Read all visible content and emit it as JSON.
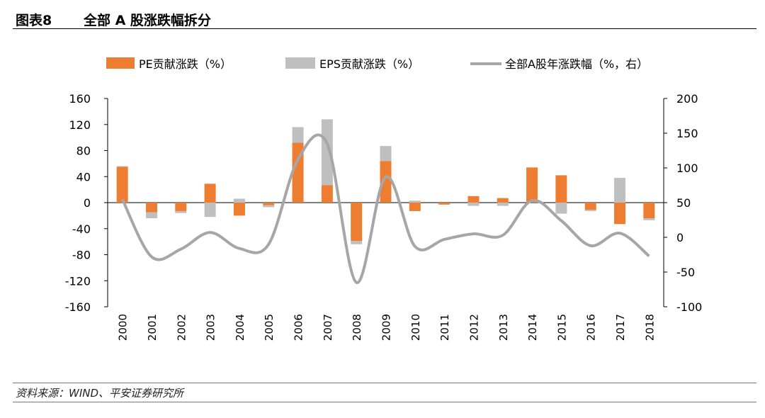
{
  "figure": {
    "number": "图表8",
    "title": "全部 A 股涨跌幅拆分",
    "source": "资料来源：WIND、平安证券研究所"
  },
  "chart_data": {
    "type": "bar",
    "stacked": true,
    "categories": [
      "2000",
      "2001",
      "2002",
      "2003",
      "2004",
      "2005",
      "2006",
      "2007",
      "2008",
      "2009",
      "2010",
      "2011",
      "2012",
      "2013",
      "2014",
      "2015",
      "2016",
      "2017",
      "2018"
    ],
    "series": [
      {
        "name": "PE贡献涨跌（%）",
        "type": "bar",
        "axis": "left",
        "color": "#ED7D31",
        "values": [
          55,
          -15,
          -13,
          29,
          -20,
          -4,
          92,
          27,
          -59,
          64,
          -13,
          -3,
          10,
          7,
          54,
          42,
          -11,
          -33,
          -24
        ]
      },
      {
        "name": "EPS贡献涨跌（%）",
        "type": "bar",
        "axis": "left",
        "color": "#BFBFBF",
        "values": [
          1,
          -9,
          -3,
          -22,
          6,
          -3,
          24,
          101,
          -5,
          23,
          3,
          0,
          -5,
          -5,
          0,
          -17,
          -2,
          38,
          -3
        ]
      },
      {
        "name": "全部A股年涨跌幅（%，右）",
        "type": "line",
        "axis": "right",
        "color": "#A6A6A6",
        "values": [
          55,
          -28,
          -17,
          7,
          -16,
          -10,
          112,
          135,
          -65,
          87,
          -13,
          -3,
          5,
          3,
          53,
          24,
          -12,
          6,
          -27
        ]
      }
    ],
    "y_left": {
      "ticks": [
        160,
        120,
        80,
        40,
        0,
        -40,
        -80,
        -120,
        -160
      ],
      "lim": [
        -160,
        160
      ]
    },
    "y_right": {
      "ticks": [
        200,
        150,
        100,
        50,
        0,
        -50,
        -100
      ],
      "lim": [
        -100,
        200
      ]
    },
    "legend_position": "top",
    "grid": false
  }
}
